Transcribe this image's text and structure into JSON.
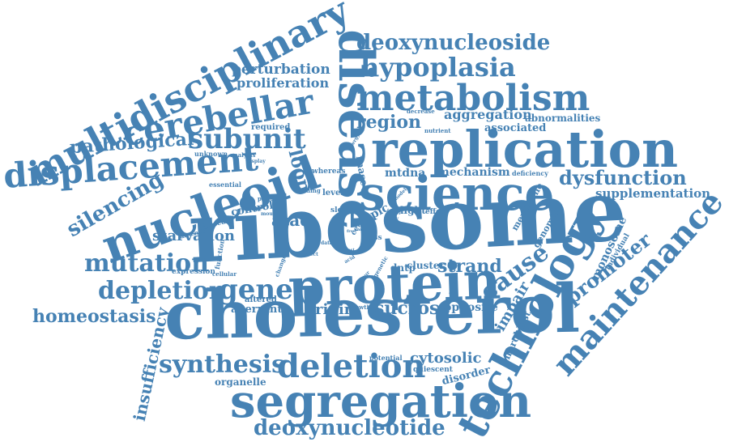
{
  "cloud": {
    "color": "#4682b4",
    "words": [
      "ribosome",
      "cholesterol",
      "protein",
      "replication",
      "disease",
      "science",
      "segregation",
      "nucleoid",
      "technology",
      "multidisciplinary",
      "metabolism",
      "cerebellar",
      "displacement",
      "maintenance",
      "deletion",
      "hypoplasia",
      "deoxynucleoside",
      "deoxynucleotide",
      "subunit",
      "gene",
      "mutation",
      "depletion",
      "synthesis",
      "cause",
      "promoter",
      "dysfunction",
      "silencing",
      "strand",
      "pathological",
      "homeostasis",
      "insufficiency",
      "sucrose",
      "loop",
      "region",
      "cytosolic",
      "perturbation",
      "proliferation",
      "supplementation",
      "aggregation",
      "mechanism",
      "starvation",
      "atad",
      "origin",
      "impair",
      "monosome",
      "opposite",
      "fibroblast",
      "topic",
      "rnase",
      "mtdna",
      "abnormalities",
      "associated",
      "aberrant",
      "organelle",
      "disorder",
      "membrane",
      "genomic",
      "individual",
      "control",
      "light",
      "level",
      "altered",
      "quiescent",
      "expression",
      "function",
      "effect",
      "cellular",
      "deficiency",
      "potential",
      "required",
      "essential",
      "unknown",
      "analysis",
      "display",
      "growth",
      "cluster",
      "dntp",
      "whereas",
      "slow",
      "finding",
      "patient",
      "decrease",
      "nutrient",
      "molecule",
      "absence",
      "mouse",
      "change",
      "loss",
      "cell",
      "central",
      "defect",
      "acid",
      "many",
      "genetic",
      "occur",
      "energy",
      "model",
      "data",
      "most",
      "inner",
      "small",
      "free"
    ]
  }
}
